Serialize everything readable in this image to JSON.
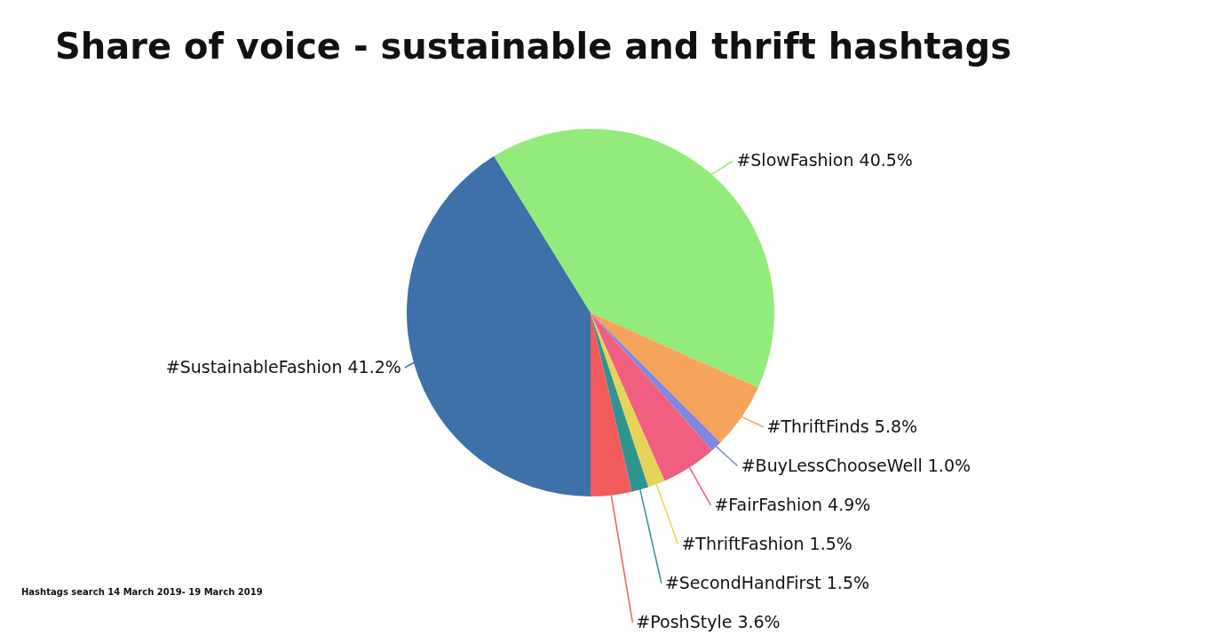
{
  "chart_data": {
    "type": "pie",
    "title": "Share of voice - sustainable and thrift hashtags",
    "categories": [
      "#SustainableFashion",
      "#SlowFashion",
      "#ThriftFinds",
      "#BuyLessChooseWell",
      "#FairFashion",
      "#ThriftFashion",
      "#SecondHandFirst",
      "#PoshStyle"
    ],
    "values": [
      41.2,
      40.5,
      5.8,
      1.0,
      4.9,
      1.5,
      1.5,
      3.6
    ],
    "value_labels": [
      "41.2%",
      "40.5%",
      "5.8%",
      "1.0%",
      "4.9%",
      "1.5%",
      "1.5%",
      "3.6%"
    ],
    "colors": [
      "#3e70aa",
      "#93eb7b",
      "#f6a35b",
      "#7f88e1",
      "#f05f80",
      "#e6d45a",
      "#2e948f",
      "#f25b5b"
    ],
    "annotations": [
      "Hashtags search 14 March 2019- 19 March 2019"
    ]
  }
}
